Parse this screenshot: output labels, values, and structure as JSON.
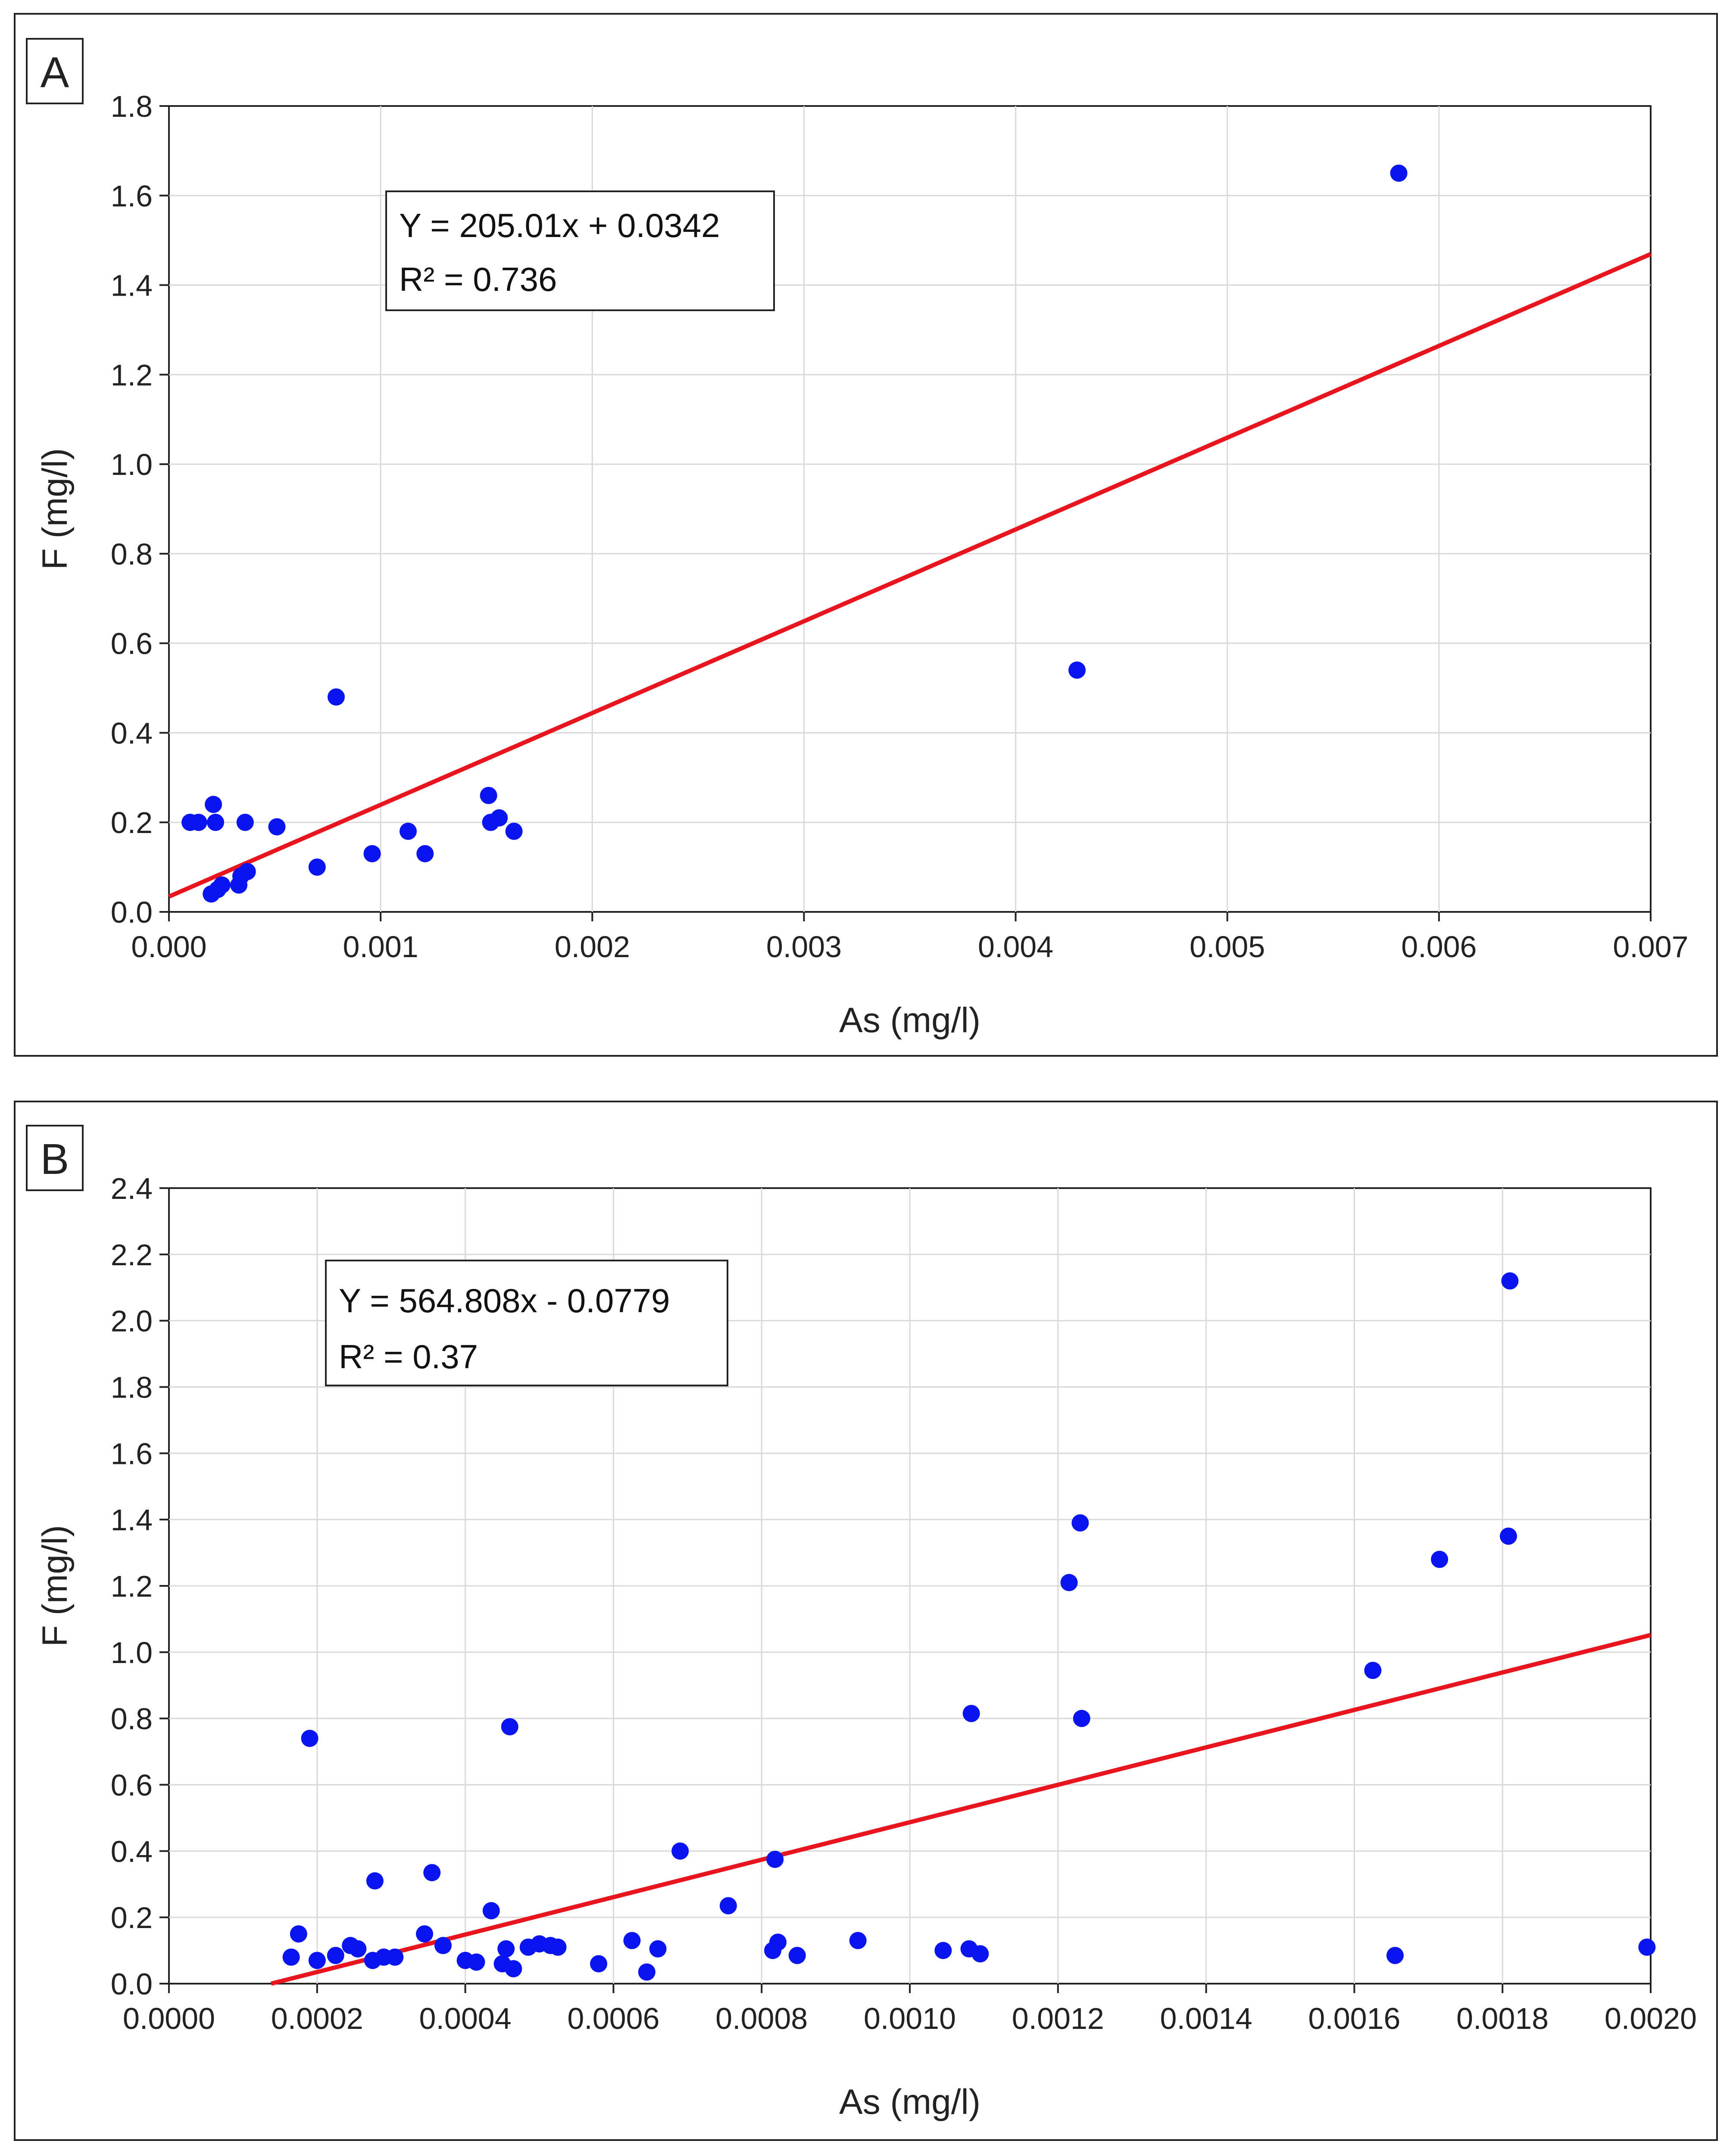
{
  "colors": {
    "point": "#0a14f0",
    "fit_line": "#e8141e"
  },
  "chart_data": [
    {
      "type": "scatter",
      "panel_label": "A",
      "xlabel": "As (mg/l)",
      "ylabel": "F (mg/l)",
      "xlim": [
        0,
        0.007
      ],
      "ylim": [
        0,
        1.8
      ],
      "x_ticks": [
        0,
        0.001,
        0.002,
        0.003,
        0.004,
        0.005,
        0.006,
        0.007
      ],
      "x_tick_labels": [
        "0.000",
        "0.001",
        "0.002",
        "0.003",
        "0.004",
        "0.005",
        "0.006",
        "0.007"
      ],
      "y_ticks": [
        0,
        0.2,
        0.4,
        0.6,
        0.8,
        1.0,
        1.2,
        1.4,
        1.6,
        1.8
      ],
      "y_tick_labels": [
        "0.0",
        "0.2",
        "0.4",
        "0.6",
        "0.8",
        "1.0",
        "1.2",
        "1.4",
        "1.6",
        "1.8"
      ],
      "grid": true,
      "equation": "Y = 205.01x + 0.0342",
      "r_squared": "R² = 0.736",
      "fit": {
        "slope": 205.01,
        "intercept": 0.0342
      },
      "points": [
        [
          0.0001,
          0.2
        ],
        [
          0.00014,
          0.2
        ],
        [
          0.00022,
          0.2
        ],
        [
          0.00021,
          0.24
        ],
        [
          0.00036,
          0.2
        ],
        [
          0.00051,
          0.19
        ],
        [
          0.0002,
          0.04
        ],
        [
          0.00023,
          0.05
        ],
        [
          0.00025,
          0.06
        ],
        [
          0.00033,
          0.06
        ],
        [
          0.00034,
          0.08
        ],
        [
          0.00037,
          0.09
        ],
        [
          0.0007,
          0.1
        ],
        [
          0.00079,
          0.48
        ],
        [
          0.00096,
          0.13
        ],
        [
          0.00113,
          0.18
        ],
        [
          0.00121,
          0.13
        ],
        [
          0.00151,
          0.26
        ],
        [
          0.00152,
          0.2
        ],
        [
          0.00156,
          0.21
        ],
        [
          0.00163,
          0.18
        ],
        [
          0.00429,
          0.54
        ],
        [
          0.00581,
          1.65
        ]
      ]
    },
    {
      "type": "scatter",
      "panel_label": "B",
      "xlabel": "As (mg/l)",
      "ylabel": "F (mg/l)",
      "xlim": [
        0,
        0.002
      ],
      "ylim": [
        0,
        2.4
      ],
      "x_ticks": [
        0,
        0.0002,
        0.0004,
        0.0006,
        0.0008,
        0.001,
        0.0012,
        0.0014,
        0.0016,
        0.0018,
        0.002
      ],
      "x_tick_labels": [
        "0.0000",
        "0.0002",
        "0.0004",
        "0.0006",
        "0.0008",
        "0.0010",
        "0.0012",
        "0.0014",
        "0.0016",
        "0.0018",
        "0.0020"
      ],
      "y_ticks": [
        0,
        0.2,
        0.4,
        0.6,
        0.8,
        1.0,
        1.2,
        1.4,
        1.6,
        1.8,
        2.0,
        2.2,
        2.4
      ],
      "y_tick_labels": [
        "0.0",
        "0.2",
        "0.4",
        "0.6",
        "0.8",
        "1.0",
        "1.2",
        "1.4",
        "1.6",
        "1.8",
        "2.0",
        "2.2",
        "2.4"
      ],
      "grid": true,
      "equation": "Y = 564.808x - 0.0779",
      "r_squared": "R² = 0.37",
      "fit": {
        "slope": 564.808,
        "intercept": -0.0779
      },
      "points": [
        [
          0.000165,
          0.08
        ],
        [
          0.000175,
          0.15
        ],
        [
          0.00019,
          0.74
        ],
        [
          0.0002,
          0.07
        ],
        [
          0.000225,
          0.085
        ],
        [
          0.000245,
          0.115
        ],
        [
          0.000255,
          0.105
        ],
        [
          0.000275,
          0.07
        ],
        [
          0.000278,
          0.31
        ],
        [
          0.00029,
          0.08
        ],
        [
          0.000305,
          0.08
        ],
        [
          0.000345,
          0.15
        ],
        [
          0.000355,
          0.335
        ],
        [
          0.00037,
          0.115
        ],
        [
          0.0004,
          0.07
        ],
        [
          0.000415,
          0.065
        ],
        [
          0.000435,
          0.22
        ],
        [
          0.00045,
          0.06
        ],
        [
          0.000455,
          0.105
        ],
        [
          0.00046,
          0.775
        ],
        [
          0.000465,
          0.045
        ],
        [
          0.000485,
          0.11
        ],
        [
          0.0005,
          0.12
        ],
        [
          0.000515,
          0.115
        ],
        [
          0.000525,
          0.11
        ],
        [
          0.00058,
          0.06
        ],
        [
          0.000625,
          0.13
        ],
        [
          0.000645,
          0.035
        ],
        [
          0.00066,
          0.105
        ],
        [
          0.00069,
          0.4
        ],
        [
          0.000755,
          0.235
        ],
        [
          0.000815,
          0.1
        ],
        [
          0.000818,
          0.375
        ],
        [
          0.000822,
          0.125
        ],
        [
          0.000848,
          0.085
        ],
        [
          0.00093,
          0.13
        ],
        [
          0.001045,
          0.1
        ],
        [
          0.00108,
          0.105
        ],
        [
          0.001083,
          0.815
        ],
        [
          0.001095,
          0.09
        ],
        [
          0.001215,
          1.21
        ],
        [
          0.00123,
          1.39
        ],
        [
          0.001232,
          0.8
        ],
        [
          0.001625,
          0.945
        ],
        [
          0.001655,
          0.085
        ],
        [
          0.001715,
          1.28
        ],
        [
          0.001808,
          1.35
        ],
        [
          0.00181,
          2.12
        ],
        [
          0.001995,
          0.11
        ]
      ]
    }
  ]
}
